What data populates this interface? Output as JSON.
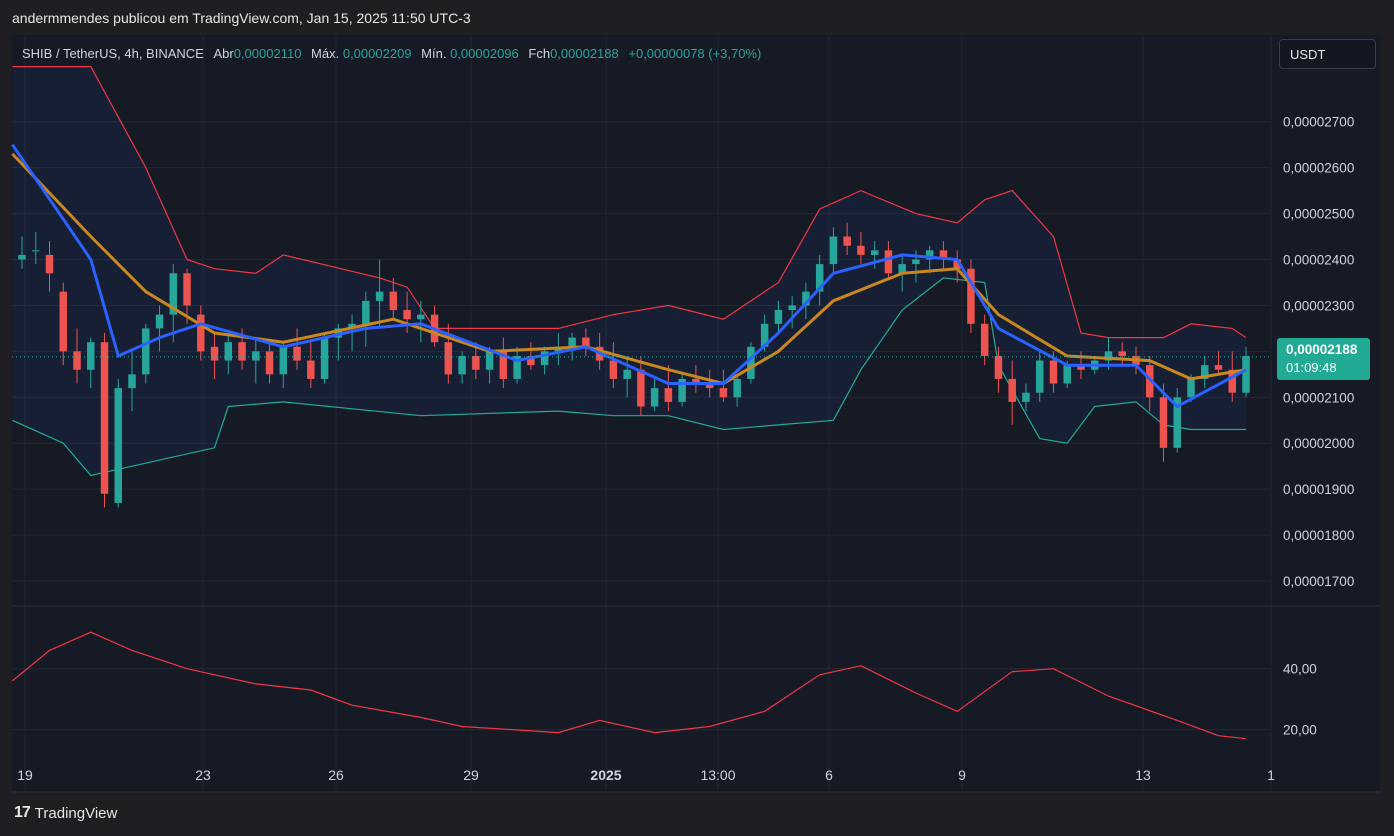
{
  "header": {
    "publisher_line": "andermmendes publicou em TradingView.com, Jan 15, 2025 11:50 UTC-3"
  },
  "legend": {
    "symbol": "SHIB / TetherUS, 4h, BINANCE",
    "open_label": "Abr",
    "open_value": "0,00002110",
    "high_label": "Máx.",
    "high_value": "0,00002209",
    "low_label": "Mín.",
    "low_value": "0,00002096",
    "close_label": "Fch",
    "close_value": "0,00002188",
    "change": "+0,00000078 (+3,70%)"
  },
  "currency_button": "USDT",
  "price_tag": {
    "price": "0,00002188",
    "countdown": "01:09:48"
  },
  "footer": {
    "logo_mark": "17",
    "logo_text": "TradingView"
  },
  "colors": {
    "up": "#26a69a",
    "down": "#ef5350",
    "ema_fast": "#2962ff",
    "ema_slow": "#c8871f",
    "bb_upper": "#f23645",
    "bb_lower": "#22ab94",
    "indicator": "#f23645"
  },
  "chart_data": {
    "type": "candlestick",
    "price_axis": {
      "ticks": [
        "0,00002700",
        "0,00002600",
        "0,00002500",
        "0,00002400",
        "0,00002300",
        "0,00002200",
        "0,00002100",
        "0,00002000",
        "0,00001900",
        "0,00001800",
        "0,00001700"
      ],
      "ylim": [
        1.65e-05,
        2.83e-05
      ]
    },
    "indicator_axis": {
      "ticks": [
        "40,00",
        "20,00"
      ],
      "ylim": [
        10,
        56
      ]
    },
    "time_axis": {
      "labels": [
        "19",
        "23",
        "26",
        "29",
        "2025",
        "13:00",
        "6",
        "9",
        "13",
        "1"
      ]
    },
    "current_price": 2.188e-05,
    "candles": [
      [
        1,
        2.4,
        2.45,
        2.38,
        2.41
      ],
      [
        2,
        2.42,
        2.46,
        2.39,
        2.42
      ],
      [
        3,
        2.41,
        2.44,
        2.33,
        2.37
      ],
      [
        4,
        2.33,
        2.35,
        2.17,
        2.2
      ],
      [
        5,
        2.2,
        2.25,
        2.13,
        2.16
      ],
      [
        6,
        2.16,
        2.23,
        2.12,
        2.22
      ],
      [
        7,
        2.22,
        2.24,
        1.86,
        1.89
      ],
      [
        8,
        1.87,
        2.14,
        1.86,
        2.12
      ],
      [
        9,
        2.12,
        2.2,
        2.07,
        2.15
      ],
      [
        10,
        2.15,
        2.26,
        2.13,
        2.25
      ],
      [
        11,
        2.25,
        2.3,
        2.2,
        2.28
      ],
      [
        12,
        2.28,
        2.39,
        2.22,
        2.37
      ],
      [
        13,
        2.37,
        2.38,
        2.26,
        2.3
      ],
      [
        14,
        2.28,
        2.3,
        2.18,
        2.2
      ],
      [
        15,
        2.21,
        2.24,
        2.14,
        2.18
      ],
      [
        16,
        2.18,
        2.24,
        2.15,
        2.22
      ],
      [
        17,
        2.22,
        2.25,
        2.16,
        2.18
      ],
      [
        18,
        2.18,
        2.23,
        2.13,
        2.2
      ],
      [
        19,
        2.2,
        2.22,
        2.13,
        2.15
      ],
      [
        20,
        2.15,
        2.22,
        2.12,
        2.21
      ],
      [
        21,
        2.21,
        2.25,
        2.16,
        2.18
      ],
      [
        22,
        2.18,
        2.22,
        2.12,
        2.14
      ],
      [
        23,
        2.14,
        2.24,
        2.13,
        2.23
      ],
      [
        24,
        2.23,
        2.26,
        2.18,
        2.25
      ],
      [
        25,
        2.25,
        2.28,
        2.2,
        2.26
      ],
      [
        26,
        2.26,
        2.33,
        2.21,
        2.31
      ],
      [
        27,
        2.31,
        2.4,
        2.25,
        2.33
      ],
      [
        28,
        2.33,
        2.36,
        2.27,
        2.29
      ],
      [
        29,
        2.29,
        2.33,
        2.24,
        2.27
      ],
      [
        30,
        2.27,
        2.31,
        2.22,
        2.28
      ],
      [
        31,
        2.28,
        2.3,
        2.21,
        2.22
      ],
      [
        32,
        2.22,
        2.26,
        2.13,
        2.15
      ],
      [
        33,
        2.15,
        2.2,
        2.13,
        2.19
      ],
      [
        34,
        2.19,
        2.22,
        2.14,
        2.16
      ],
      [
        35,
        2.16,
        2.21,
        2.13,
        2.2
      ],
      [
        36,
        2.2,
        2.23,
        2.12,
        2.14
      ],
      [
        37,
        2.14,
        2.21,
        2.13,
        2.19
      ],
      [
        38,
        2.19,
        2.22,
        2.16,
        2.17
      ],
      [
        39,
        2.17,
        2.21,
        2.15,
        2.2
      ],
      [
        40,
        2.2,
        2.24,
        2.17,
        2.21
      ],
      [
        41,
        2.21,
        2.24,
        2.18,
        2.23
      ],
      [
        42,
        2.23,
        2.25,
        2.19,
        2.21
      ],
      [
        43,
        2.21,
        2.24,
        2.16,
        2.18
      ],
      [
        44,
        2.18,
        2.22,
        2.12,
        2.14
      ],
      [
        45,
        2.14,
        2.19,
        2.1,
        2.16
      ],
      [
        46,
        2.16,
        2.19,
        2.06,
        2.08
      ],
      [
        47,
        2.08,
        2.14,
        2.07,
        2.12
      ],
      [
        48,
        2.12,
        2.17,
        2.07,
        2.09
      ],
      [
        49,
        2.09,
        2.15,
        2.08,
        2.14
      ],
      [
        50,
        2.14,
        2.17,
        2.11,
        2.13
      ],
      [
        51,
        2.13,
        2.16,
        2.1,
        2.12
      ],
      [
        52,
        2.12,
        2.16,
        2.09,
        2.1
      ],
      [
        53,
        2.1,
        2.15,
        2.08,
        2.14
      ],
      [
        54,
        2.14,
        2.22,
        2.13,
        2.21
      ],
      [
        55,
        2.21,
        2.28,
        2.2,
        2.26
      ],
      [
        56,
        2.26,
        2.31,
        2.24,
        2.29
      ],
      [
        57,
        2.29,
        2.32,
        2.25,
        2.3
      ],
      [
        58,
        2.3,
        2.35,
        2.27,
        2.33
      ],
      [
        59,
        2.33,
        2.41,
        2.3,
        2.39
      ],
      [
        60,
        2.39,
        2.47,
        2.37,
        2.45
      ],
      [
        61,
        2.45,
        2.48,
        2.41,
        2.43
      ],
      [
        62,
        2.43,
        2.46,
        2.39,
        2.41
      ],
      [
        63,
        2.41,
        2.44,
        2.38,
        2.42
      ],
      [
        64,
        2.42,
        2.44,
        2.36,
        2.37
      ],
      [
        65,
        2.37,
        2.41,
        2.33,
        2.39
      ],
      [
        66,
        2.39,
        2.42,
        2.35,
        2.4
      ],
      [
        67,
        2.4,
        2.43,
        2.37,
        2.42
      ],
      [
        68,
        2.42,
        2.44,
        2.38,
        2.4
      ],
      [
        69,
        2.4,
        2.42,
        2.35,
        2.38
      ],
      [
        70,
        2.38,
        2.4,
        2.24,
        2.26
      ],
      [
        71,
        2.26,
        2.28,
        2.17,
        2.19
      ],
      [
        72,
        2.19,
        2.21,
        2.11,
        2.14
      ],
      [
        73,
        2.14,
        2.18,
        2.04,
        2.09
      ],
      [
        74,
        2.09,
        2.13,
        2.07,
        2.11
      ],
      [
        75,
        2.11,
        2.2,
        2.09,
        2.18
      ],
      [
        76,
        2.18,
        2.2,
        2.11,
        2.13
      ],
      [
        77,
        2.13,
        2.18,
        2.12,
        2.17
      ],
      [
        78,
        2.17,
        2.2,
        2.14,
        2.16
      ],
      [
        79,
        2.16,
        2.19,
        2.15,
        2.18
      ],
      [
        80,
        2.18,
        2.23,
        2.16,
        2.2
      ],
      [
        81,
        2.2,
        2.22,
        2.17,
        2.19
      ],
      [
        82,
        2.19,
        2.21,
        2.15,
        2.17
      ],
      [
        83,
        2.17,
        2.19,
        2.07,
        2.1
      ],
      [
        84,
        2.1,
        2.13,
        1.96,
        1.99
      ],
      [
        85,
        1.99,
        2.12,
        1.98,
        2.1
      ],
      [
        86,
        2.1,
        2.15,
        2.09,
        2.14
      ],
      [
        87,
        2.14,
        2.19,
        2.12,
        2.17
      ],
      [
        88,
        2.17,
        2.2,
        2.15,
        2.16
      ],
      [
        89,
        2.16,
        2.2,
        2.09,
        2.11
      ],
      [
        90,
        2.11,
        2.21,
        2.1,
        2.19
      ]
    ],
    "ema_fast": [
      [
        0,
        2.65
      ],
      [
        6,
        2.4
      ],
      [
        8,
        2.19
      ],
      [
        11,
        2.23
      ],
      [
        14,
        2.26
      ],
      [
        20,
        2.21
      ],
      [
        26,
        2.25
      ],
      [
        30,
        2.26
      ],
      [
        37,
        2.18
      ],
      [
        42,
        2.21
      ],
      [
        48,
        2.13
      ],
      [
        52,
        2.13
      ],
      [
        56,
        2.24
      ],
      [
        60,
        2.37
      ],
      [
        65,
        2.41
      ],
      [
        69,
        2.4
      ],
      [
        72,
        2.25
      ],
      [
        77,
        2.17
      ],
      [
        82,
        2.17
      ],
      [
        85,
        2.08
      ],
      [
        90,
        2.16
      ]
    ],
    "ema_slow": [
      [
        0,
        2.63
      ],
      [
        6,
        2.45
      ],
      [
        10,
        2.33
      ],
      [
        15,
        2.24
      ],
      [
        20,
        2.22
      ],
      [
        28,
        2.27
      ],
      [
        35,
        2.2
      ],
      [
        42,
        2.21
      ],
      [
        48,
        2.16
      ],
      [
        52,
        2.13
      ],
      [
        56,
        2.2
      ],
      [
        60,
        2.31
      ],
      [
        65,
        2.37
      ],
      [
        69,
        2.38
      ],
      [
        72,
        2.28
      ],
      [
        77,
        2.19
      ],
      [
        83,
        2.18
      ],
      [
        86,
        2.14
      ],
      [
        90,
        2.16
      ]
    ],
    "bb_upper": [
      [
        0,
        2.82
      ],
      [
        6,
        2.82
      ],
      [
        10,
        2.6
      ],
      [
        13,
        2.4
      ],
      [
        15,
        2.38
      ],
      [
        18,
        2.37
      ],
      [
        20,
        2.41
      ],
      [
        27,
        2.36
      ],
      [
        29,
        2.34
      ],
      [
        31,
        2.25
      ],
      [
        40,
        2.25
      ],
      [
        44,
        2.28
      ],
      [
        48,
        2.3
      ],
      [
        52,
        2.27
      ],
      [
        56,
        2.35
      ],
      [
        59,
        2.51
      ],
      [
        62,
        2.55
      ],
      [
        66,
        2.5
      ],
      [
        69,
        2.48
      ],
      [
        71,
        2.53
      ],
      [
        73,
        2.55
      ],
      [
        76,
        2.45
      ],
      [
        78,
        2.24
      ],
      [
        80,
        2.23
      ],
      [
        84,
        2.23
      ],
      [
        86,
        2.26
      ],
      [
        89,
        2.25
      ],
      [
        90,
        2.23
      ]
    ],
    "bb_lower": [
      [
        0,
        2.05
      ],
      [
        4,
        2.0
      ],
      [
        6,
        1.93
      ],
      [
        9,
        1.95
      ],
      [
        15,
        1.99
      ],
      [
        16,
        2.08
      ],
      [
        20,
        2.09
      ],
      [
        30,
        2.06
      ],
      [
        40,
        2.07
      ],
      [
        44,
        2.06
      ],
      [
        48,
        2.06
      ],
      [
        52,
        2.03
      ],
      [
        56,
        2.04
      ],
      [
        60,
        2.05
      ],
      [
        62,
        2.16
      ],
      [
        65,
        2.29
      ],
      [
        68,
        2.36
      ],
      [
        71,
        2.35
      ],
      [
        72,
        2.17
      ],
      [
        75,
        2.01
      ],
      [
        77,
        2.0
      ],
      [
        79,
        2.08
      ],
      [
        82,
        2.09
      ],
      [
        84,
        2.04
      ],
      [
        86,
        2.03
      ],
      [
        90,
        2.03
      ]
    ],
    "indicator": [
      [
        0,
        36
      ],
      [
        3,
        46
      ],
      [
        6,
        52
      ],
      [
        9,
        46
      ],
      [
        13,
        40
      ],
      [
        18,
        35
      ],
      [
        22,
        33
      ],
      [
        25,
        28
      ],
      [
        30,
        24
      ],
      [
        33,
        21
      ],
      [
        40,
        19
      ],
      [
        43,
        23
      ],
      [
        47,
        19
      ],
      [
        51,
        21
      ],
      [
        55,
        26
      ],
      [
        59,
        38
      ],
      [
        62,
        41
      ],
      [
        66,
        32
      ],
      [
        69,
        26
      ],
      [
        73,
        39
      ],
      [
        76,
        40
      ],
      [
        80,
        31
      ],
      [
        85,
        23
      ],
      [
        88,
        18
      ],
      [
        90,
        17
      ]
    ]
  }
}
